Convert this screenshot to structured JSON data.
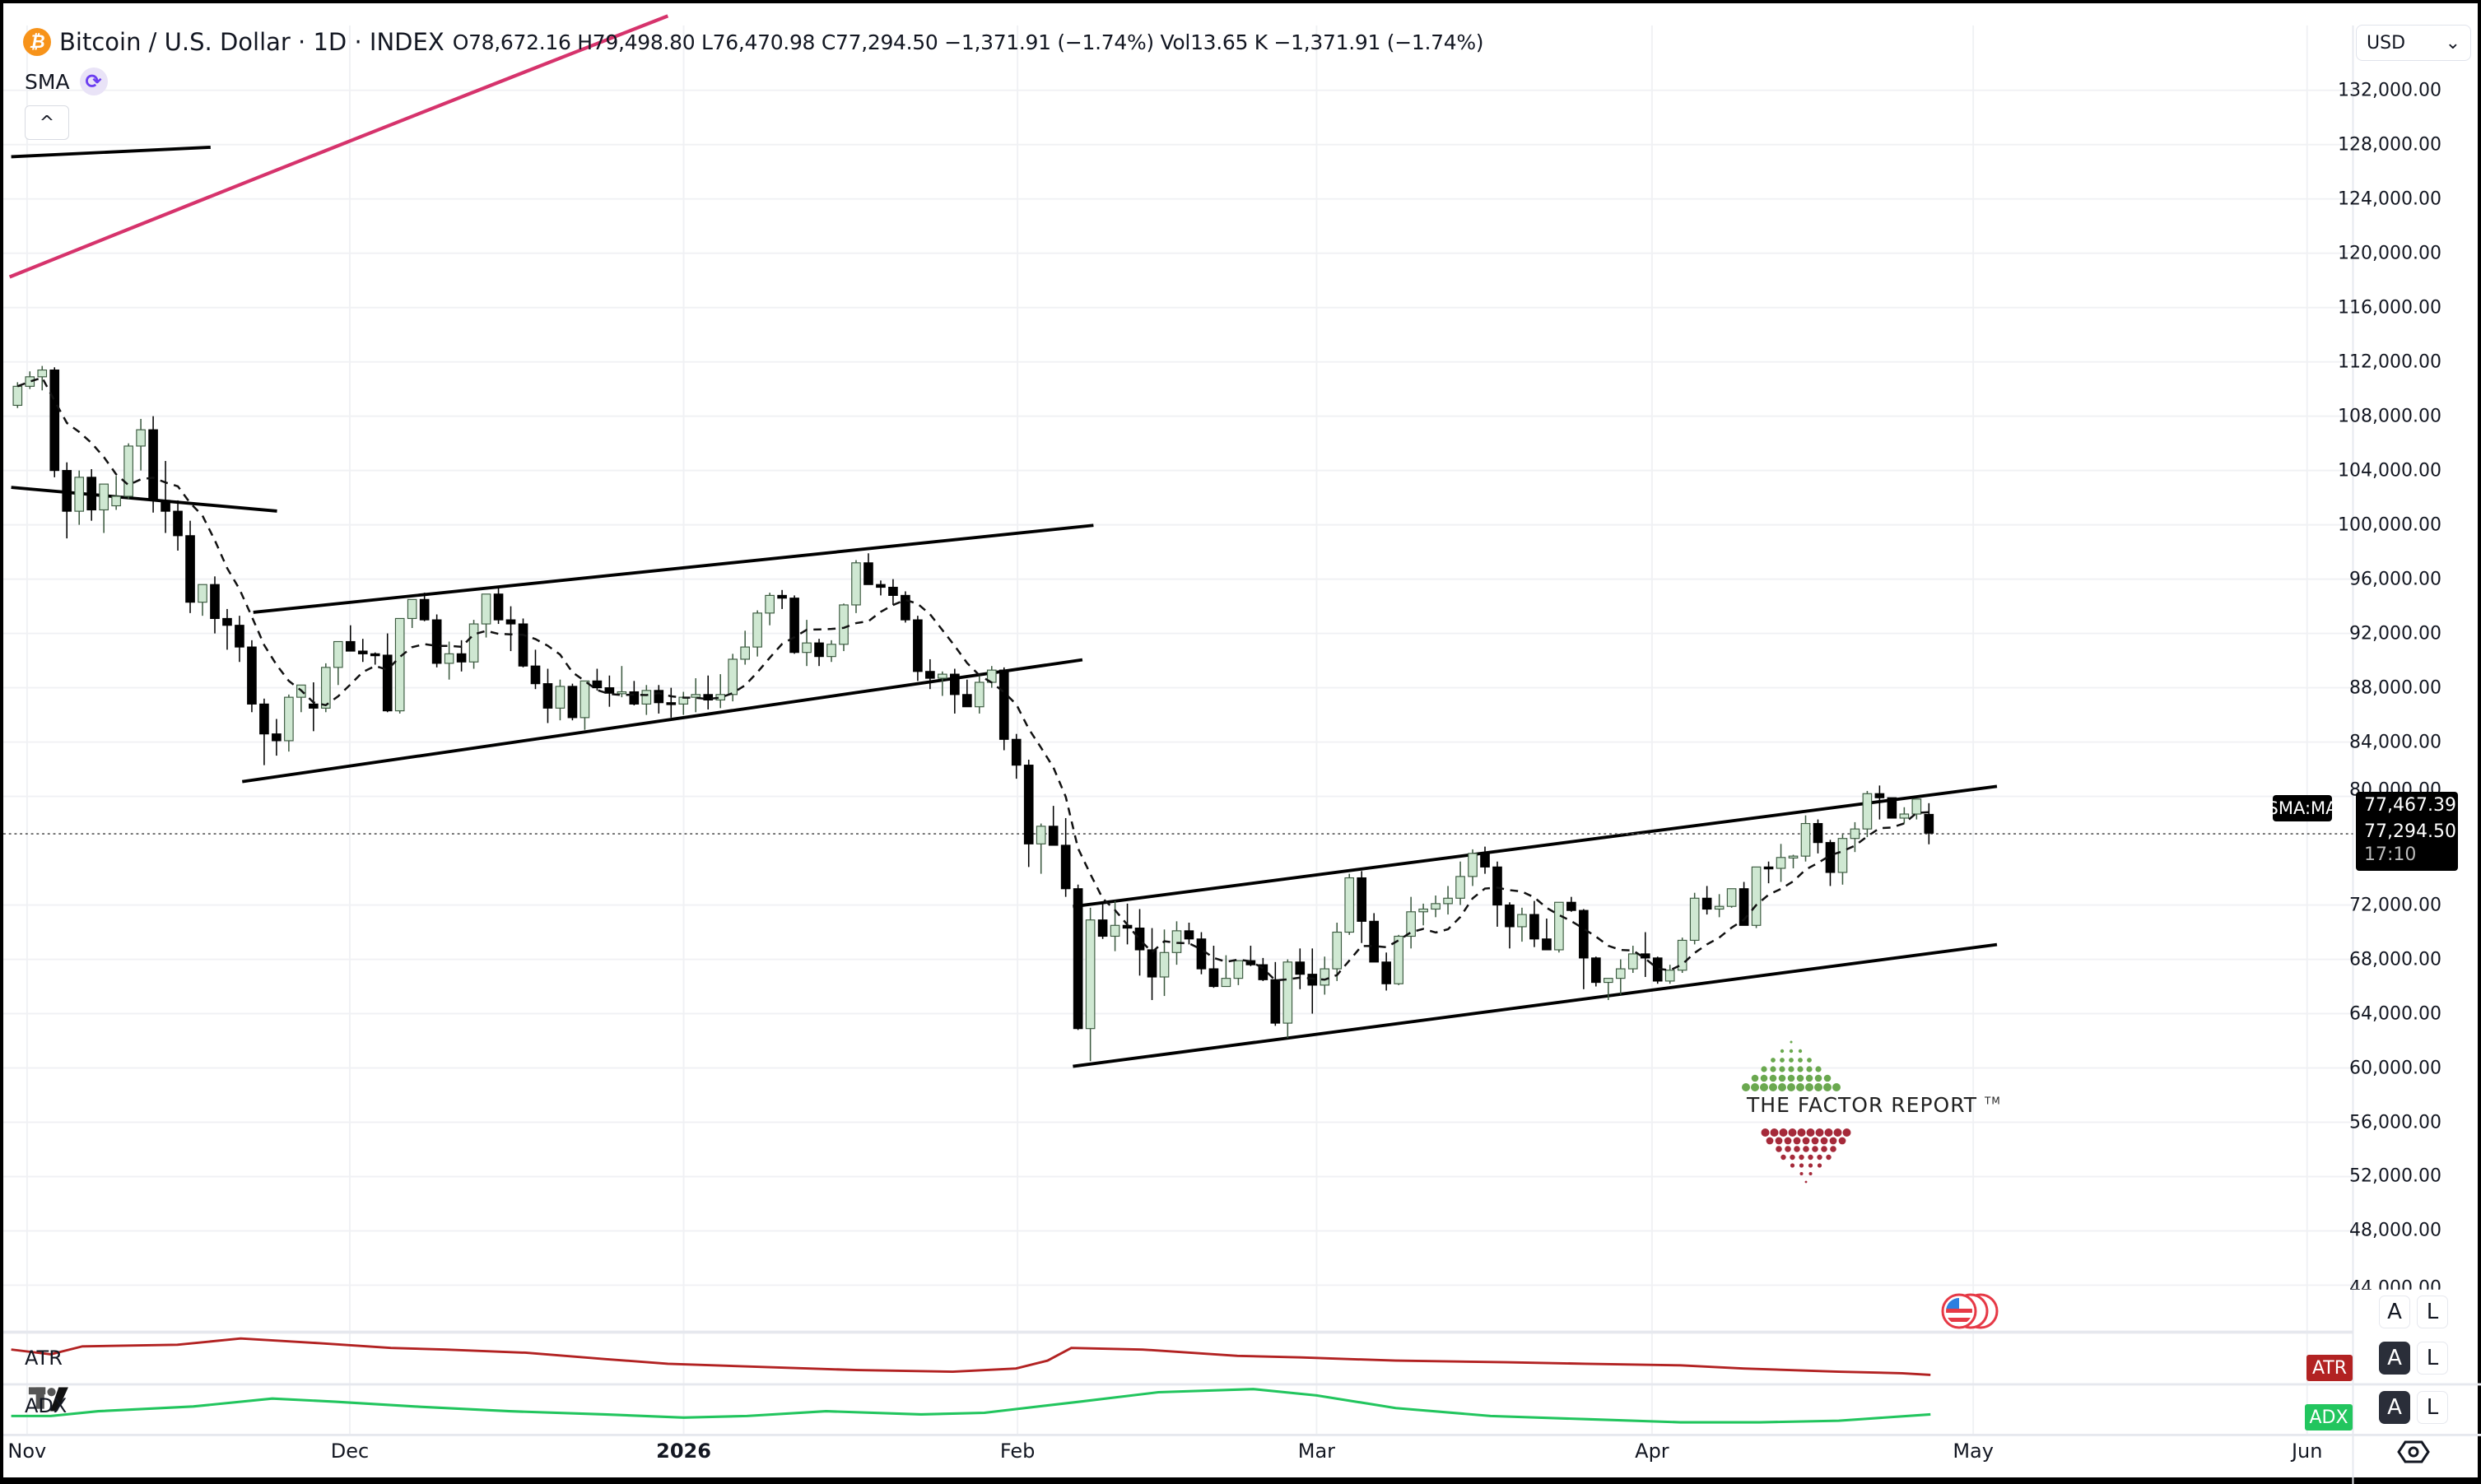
{
  "header": {
    "symbol_icon": "bitcoin-icon",
    "title": "Bitcoin / U.S. Dollar · 1D · INDEX",
    "open_label": "O",
    "open": "78,672.16",
    "high_label": "H",
    "high": "79,498.80",
    "low_label": "L",
    "low": "76,470.98",
    "close_label": "C",
    "close": "77,294.50",
    "change": "−1,371.91 (−1.74%)",
    "vol_label": "Vol",
    "vol": "13.65 K",
    "change2": "−1,371.91 (−1.74%)"
  },
  "indicators": {
    "sma_label": "SMA",
    "sma_icon": "refresh-icon",
    "collapse_icon": "chevron-up-icon",
    "collapse_glyph": "^"
  },
  "price_axis": {
    "currency": "USD",
    "currency_chevron": "⌄",
    "ticks": [
      "132,000.00",
      "128,000.00",
      "124,000.00",
      "120,000.00",
      "116,000.00",
      "112,000.00",
      "108,000.00",
      "104,000.00",
      "100,000.00",
      "96,000.00",
      "92,000.00",
      "88,000.00",
      "84,000.00",
      "80,000.00",
      "72,000.00",
      "68,000.00",
      "64,000.00",
      "60,000.00",
      "56,000.00",
      "52,000.00",
      "48,000.00",
      "44,000.00"
    ],
    "sma_tag_label": "SMA:MA",
    "sma_value": "77,467.39",
    "last_price": "77,294.50",
    "countdown": "17:10",
    "auto_label": "A",
    "log_label": "L"
  },
  "panes": {
    "atr": {
      "label": "ATR",
      "tag": "ATR",
      "color": "#b22222",
      "auto_label": "A",
      "log_label": "L"
    },
    "adx": {
      "label": "ADX",
      "tag": "ADX",
      "color": "#22c55e",
      "auto_label": "A",
      "log_label": "L"
    }
  },
  "time_axis": {
    "labels": [
      {
        "text": "Nov",
        "x": 15,
        "bold": false
      },
      {
        "text": "Dec",
        "x": 219,
        "bold": false
      },
      {
        "text": "2026",
        "x": 430,
        "bold": true
      },
      {
        "text": "Feb",
        "x": 641,
        "bold": false
      },
      {
        "text": "Mar",
        "x": 830,
        "bold": false
      },
      {
        "text": "Apr",
        "x": 1042,
        "bold": false
      },
      {
        "text": "May",
        "x": 1245,
        "bold": false
      },
      {
        "text": "Jun",
        "x": 1456,
        "bold": false
      }
    ],
    "settings_icon": "settings-hexagon-icon"
  },
  "watermark": {
    "text": "THE FACTOR REPORT",
    "tm": "TM"
  },
  "colors": {
    "up_fill": "#cfe8d2",
    "up_border": "#3c5a40",
    "down_fill": "#000000",
    "trendline": "#000000",
    "pink_curve": "#d6336c",
    "grid": "#f0f1f4",
    "accent_btc": "#f7931a"
  },
  "chart_data": {
    "type": "candlestick",
    "title": "Bitcoin / U.S. Dollar · 1D · INDEX",
    "xlabel": "",
    "ylabel": "USD",
    "ylim": [
      42000,
      134000
    ],
    "grid": true,
    "x_ticks": [
      "Nov",
      "Dec",
      "2026",
      "Feb",
      "Mar",
      "Apr",
      "May",
      "Jun"
    ],
    "y_ticks": [
      132000,
      128000,
      124000,
      120000,
      116000,
      112000,
      108000,
      104000,
      100000,
      96000,
      92000,
      88000,
      84000,
      80000,
      72000,
      68000,
      64000,
      60000,
      56000,
      52000,
      48000,
      44000
    ],
    "last": {
      "open": 78672.16,
      "high": 79498.8,
      "low": 76470.98,
      "close": 77294.5,
      "sma": 77467.39
    },
    "candles_ohlc": [
      [
        108800,
        110500,
        108600,
        110200
      ],
      [
        110200,
        111300,
        110000,
        110900
      ],
      [
        110900,
        111700,
        109900,
        111400
      ],
      [
        111400,
        111600,
        103500,
        104000
      ],
      [
        104000,
        104600,
        99000,
        101000
      ],
      [
        101000,
        104000,
        100000,
        103500
      ],
      [
        103500,
        104100,
        100300,
        101100
      ],
      [
        101100,
        102500,
        99400,
        103000
      ],
      [
        101400,
        103600,
        101100,
        102100
      ],
      [
        102100,
        106000,
        101900,
        105800
      ],
      [
        105800,
        107800,
        104000,
        107000
      ],
      [
        107000,
        108000,
        100900,
        101800
      ],
      [
        101800,
        104700,
        99400,
        101000
      ],
      [
        101000,
        101800,
        98100,
        99200
      ],
      [
        99200,
        100300,
        93500,
        94300
      ],
      [
        94300,
        95400,
        93300,
        95600
      ],
      [
        95600,
        96200,
        92000,
        93100
      ],
      [
        93100,
        93800,
        90800,
        92600
      ],
      [
        92600,
        93300,
        89900,
        91000
      ],
      [
        91000,
        91500,
        86200,
        86800
      ],
      [
        86800,
        87200,
        82300,
        84600
      ],
      [
        84600,
        85700,
        83000,
        84100
      ],
      [
        84100,
        87500,
        83300,
        87300
      ],
      [
        87300,
        88200,
        86200,
        88200
      ],
      [
        86800,
        88400,
        84800,
        86500
      ],
      [
        86500,
        89800,
        86200,
        89500
      ],
      [
        89500,
        91300,
        88200,
        91400
      ],
      [
        91400,
        92600,
        90700,
        90700
      ],
      [
        90700,
        91600,
        89900,
        90500
      ],
      [
        90500,
        90600,
        89700,
        90400
      ],
      [
        90400,
        92000,
        86200,
        86300
      ],
      [
        86300,
        92100,
        86100,
        93100
      ],
      [
        93100,
        94500,
        92400,
        94500
      ],
      [
        94500,
        95000,
        92900,
        93000
      ],
      [
        93000,
        93400,
        89500,
        89800
      ],
      [
        89800,
        91400,
        88600,
        90500
      ],
      [
        90500,
        91500,
        89200,
        89900
      ],
      [
        89900,
        93000,
        89400,
        92700
      ],
      [
        92700,
        94900,
        91700,
        94900
      ],
      [
        94900,
        95400,
        92700,
        93000
      ],
      [
        93000,
        94000,
        90700,
        92700
      ],
      [
        92700,
        93100,
        89500,
        89600
      ],
      [
        89600,
        90800,
        87900,
        88300
      ],
      [
        88300,
        89400,
        85400,
        86500
      ],
      [
        86500,
        88600,
        85600,
        88100
      ],
      [
        88100,
        88300,
        85600,
        85800
      ],
      [
        85800,
        88400,
        84900,
        88500
      ],
      [
        88500,
        89400,
        87800,
        88000
      ],
      [
        88000,
        88900,
        86600,
        87600
      ],
      [
        87600,
        89600,
        87300,
        87700
      ],
      [
        87700,
        88500,
        86700,
        86800
      ],
      [
        86800,
        88200,
        86000,
        87800
      ],
      [
        87800,
        88200,
        86100,
        86900
      ],
      [
        86900,
        88000,
        85800,
        86800
      ],
      [
        86800,
        87700,
        86000,
        87300
      ],
      [
        87300,
        88700,
        86200,
        87500
      ],
      [
        87500,
        88900,
        86400,
        87100
      ],
      [
        87100,
        89000,
        86500,
        87500
      ],
      [
        87500,
        90500,
        87000,
        90100
      ],
      [
        90100,
        92200,
        89700,
        91000
      ],
      [
        91000,
        93700,
        90300,
        93500
      ],
      [
        93500,
        95000,
        92600,
        94800
      ],
      [
        94800,
        95200,
        93800,
        94600
      ],
      [
        94600,
        94800,
        90500,
        90600
      ],
      [
        90600,
        93000,
        89600,
        91300
      ],
      [
        91300,
        91600,
        89600,
        90300
      ],
      [
        90300,
        91500,
        89900,
        91200
      ],
      [
        91200,
        94200,
        90700,
        94100
      ],
      [
        94100,
        97400,
        93500,
        97200
      ],
      [
        97200,
        97900,
        95800,
        95600
      ],
      [
        95600,
        95900,
        94800,
        95400
      ],
      [
        95400,
        96000,
        94100,
        94800
      ],
      [
        94800,
        95100,
        92800,
        93000
      ],
      [
        93000,
        93300,
        88500,
        89200
      ],
      [
        89200,
        90100,
        87900,
        88700
      ],
      [
        88700,
        89200,
        87400,
        89000
      ],
      [
        89000,
        89400,
        86100,
        87500
      ],
      [
        87500,
        88600,
        86900,
        86600
      ],
      [
        86600,
        89000,
        86100,
        88400
      ],
      [
        88400,
        89600,
        88000,
        89300
      ],
      [
        89300,
        89500,
        83400,
        84200
      ],
      [
        84200,
        84600,
        81300,
        82300
      ],
      [
        82300,
        82700,
        74800,
        76500
      ],
      [
        76500,
        78000,
        74300,
        77800
      ],
      [
        77800,
        79300,
        76400,
        76400
      ],
      [
        76400,
        78400,
        72600,
        73200
      ],
      [
        73200,
        73500,
        62800,
        62900
      ],
      [
        62900,
        71800,
        60500,
        70900
      ],
      [
        70900,
        72200,
        69500,
        69700
      ],
      [
        69700,
        72300,
        68600,
        70500
      ],
      [
        70500,
        72100,
        69100,
        70300
      ],
      [
        70300,
        71700,
        66800,
        68700
      ],
      [
        68700,
        70300,
        65000,
        66700
      ],
      [
        66700,
        70200,
        65300,
        68500
      ],
      [
        68500,
        70800,
        67600,
        70100
      ],
      [
        70100,
        70700,
        69100,
        69500
      ],
      [
        69500,
        70000,
        66900,
        67300
      ],
      [
        67300,
        69000,
        65900,
        66000
      ],
      [
        66000,
        68300,
        66500,
        66600
      ],
      [
        66600,
        67700,
        66100,
        67900
      ],
      [
        67900,
        69000,
        67500,
        67600
      ],
      [
        67600,
        68100,
        66400,
        66500
      ],
      [
        66500,
        67800,
        63100,
        63300
      ],
      [
        63300,
        68000,
        62200,
        67800
      ],
      [
        67800,
        68800,
        65800,
        66900
      ],
      [
        66900,
        68800,
        64000,
        66100
      ],
      [
        66100,
        68200,
        65400,
        67300
      ],
      [
        67300,
        70700,
        66400,
        70000
      ],
      [
        70000,
        74300,
        69800,
        74000
      ],
      [
        74000,
        74500,
        69200,
        70800
      ],
      [
        70800,
        71400,
        68700,
        67800
      ],
      [
        67800,
        68500,
        65700,
        66200
      ],
      [
        66200,
        69800,
        66100,
        69700
      ],
      [
        69700,
        72600,
        68800,
        71500
      ],
      [
        71500,
        72100,
        70500,
        71700
      ],
      [
        71700,
        72700,
        71100,
        72100
      ],
      [
        72100,
        73400,
        71300,
        72500
      ],
      [
        72500,
        75200,
        72000,
        74100
      ],
      [
        74100,
        76100,
        73400,
        75800
      ],
      [
        75800,
        76300,
        74300,
        74800
      ],
      [
        74800,
        75200,
        70400,
        72000
      ],
      [
        72000,
        72200,
        68800,
        70400
      ],
      [
        70400,
        71800,
        69300,
        71300
      ],
      [
        71300,
        72300,
        68900,
        69500
      ],
      [
        69500,
        71000,
        68800,
        68700
      ],
      [
        68700,
        72200,
        68500,
        72200
      ],
      [
        72200,
        72600,
        71500,
        71600
      ],
      [
        71600,
        71700,
        65800,
        68100
      ],
      [
        68100,
        68200,
        66000,
        66300
      ],
      [
        66300,
        66600,
        65000,
        66600
      ],
      [
        66600,
        68000,
        65400,
        67300
      ],
      [
        67300,
        69000,
        67000,
        68400
      ],
      [
        68400,
        70000,
        66700,
        68100
      ],
      [
        68100,
        68200,
        66200,
        66400
      ],
      [
        66400,
        67600,
        66200,
        67200
      ],
      [
        67200,
        69600,
        67000,
        69400
      ],
      [
        69400,
        72900,
        69100,
        72500
      ],
      [
        72500,
        73400,
        71300,
        71700
      ],
      [
        71700,
        72800,
        71100,
        71900
      ],
      [
        71900,
        73200,
        71800,
        73200
      ],
      [
        73200,
        73700,
        70600,
        70500
      ],
      [
        70500,
        74800,
        70300,
        74800
      ],
      [
        74800,
        75200,
        73600,
        74700
      ],
      [
        74700,
        76500,
        73700,
        75500
      ],
      [
        75500,
        75700,
        74700,
        75600
      ],
      [
        75600,
        78600,
        75200,
        78000
      ],
      [
        78000,
        78300,
        75800,
        76600
      ],
      [
        76600,
        76800,
        73400,
        74400
      ],
      [
        74400,
        77200,
        73500,
        76900
      ],
      [
        76900,
        78100,
        75900,
        77600
      ],
      [
        77600,
        80400,
        77000,
        80200
      ],
      [
        80200,
        80800,
        78300,
        79900
      ],
      [
        79900,
        79300,
        78400,
        78400
      ],
      [
        78400,
        79200,
        78000,
        78700
      ],
      [
        78700,
        79600,
        78300,
        79800
      ],
      [
        78672,
        79499,
        76471,
        77295
      ]
    ]
  }
}
